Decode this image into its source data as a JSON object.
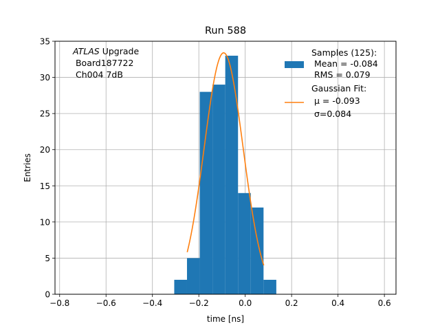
{
  "chart_data": {
    "type": "bar",
    "title": "Run 588",
    "xlabel": "time [ns]",
    "ylabel": "Entries",
    "xlim": [
      -0.82,
      0.65
    ],
    "ylim": [
      0,
      35
    ],
    "grid": true,
    "x_ticks": [
      -0.8,
      -0.6,
      -0.4,
      -0.2,
      0.0,
      0.2,
      0.4,
      0.6
    ],
    "x_tick_labels": [
      "−0.8",
      "−0.6",
      "−0.4",
      "−0.2",
      "0.0",
      "0.2",
      "0.4",
      "0.6"
    ],
    "y_ticks": [
      0,
      5,
      10,
      15,
      20,
      25,
      30,
      35
    ],
    "y_tick_labels": [
      "0",
      "5",
      "10",
      "15",
      "20",
      "25",
      "30",
      "35"
    ],
    "annotation": {
      "italic": "ATLAS",
      "line1_rest": " Upgrade",
      "line2": " Board187722",
      "line3": " Ch004 7dB"
    },
    "legend": {
      "placement": "top-right",
      "samples_label": "Samples (125):",
      "samples_mean": " Mean = -0.084",
      "samples_rms": " RMS = 0.079",
      "fit_label": "Gaussian Fit:",
      "fit_mu": " μ = -0.093",
      "fit_sigma": " σ=0.084"
    },
    "colors": {
      "histogram": "#1f77b4",
      "fit": "#ff7f0e",
      "grid": "#b0b0b0"
    },
    "histogram": {
      "name": "Samples",
      "bin_edges": [
        -0.306,
        -0.251,
        -0.196,
        -0.141,
        -0.086,
        -0.031,
        0.024,
        0.079,
        0.134
      ],
      "counts": [
        2,
        5,
        28,
        29,
        33,
        14,
        12,
        2
      ]
    },
    "fit": {
      "name": "Gaussian Fit",
      "mu": -0.093,
      "sigma": 0.084,
      "amplitude": 33.4,
      "x_range": [
        -0.25,
        0.08
      ]
    }
  }
}
